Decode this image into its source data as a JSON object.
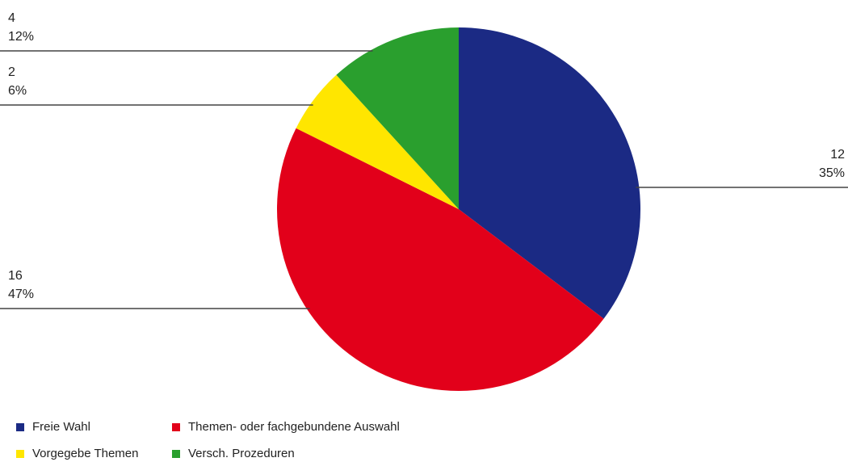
{
  "chart_data": {
    "type": "pie",
    "categories": [
      "Freie Wahl",
      "Themen- oder fachgebundene Auswahl",
      "Vorgegebe Themen",
      "Versch. Prozeduren"
    ],
    "values": [
      12,
      16,
      2,
      4
    ],
    "percent_labels": [
      "35%",
      "47%",
      "6%",
      "12%"
    ],
    "colors": [
      "#1b2a84",
      "#e2001a",
      "#ffe600",
      "#2a9f2e"
    ],
    "legend": "bottom-left"
  }
}
